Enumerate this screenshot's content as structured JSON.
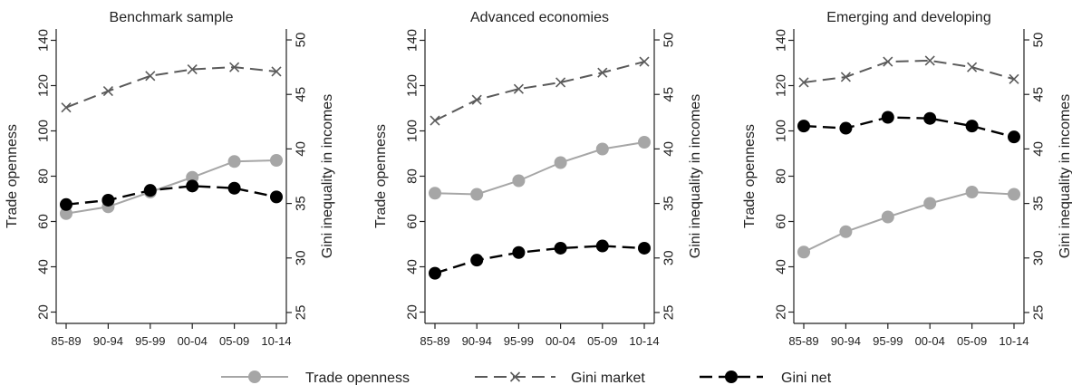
{
  "chart_data": [
    {
      "type": "line",
      "title": "Benchmark sample",
      "categories": [
        "85-89",
        "90-94",
        "95-99",
        "00-04",
        "05-09",
        "10-14"
      ],
      "y_left": {
        "label": "Trade openness",
        "lim": [
          15,
          145
        ],
        "ticks": [
          20,
          40,
          60,
          80,
          100,
          120,
          140
        ]
      },
      "y_right": {
        "label": "Gini inequality in incomes",
        "lim": [
          24,
          51
        ],
        "ticks": [
          25,
          30,
          35,
          40,
          45,
          50
        ]
      },
      "series": [
        {
          "name": "Trade openness",
          "axis": "left",
          "values": [
            63.5,
            66.5,
            73,
            79.5,
            86.5,
            87
          ]
        },
        {
          "name": "Gini market",
          "axis": "right",
          "values": [
            43.8,
            45.3,
            46.7,
            47.3,
            47.5,
            47.1
          ]
        },
        {
          "name": "Gini net",
          "axis": "right",
          "values": [
            34.9,
            35.3,
            36.2,
            36.6,
            36.4,
            35.6
          ]
        }
      ]
    },
    {
      "type": "line",
      "title": "Advanced economies",
      "categories": [
        "85-89",
        "90-94",
        "95-99",
        "00-04",
        "05-09",
        "10-14"
      ],
      "y_left": {
        "label": "Trade openness",
        "lim": [
          15,
          145
        ],
        "ticks": [
          20,
          40,
          60,
          80,
          100,
          120,
          140
        ]
      },
      "y_right": {
        "label": "Gini inequality in incomes",
        "lim": [
          24,
          51
        ],
        "ticks": [
          25,
          30,
          35,
          40,
          45,
          50
        ]
      },
      "series": [
        {
          "name": "Trade openness",
          "axis": "left",
          "values": [
            72.5,
            72,
            78,
            86,
            92,
            95
          ]
        },
        {
          "name": "Gini market",
          "axis": "right",
          "values": [
            42.6,
            44.5,
            45.5,
            46.1,
            47,
            48
          ]
        },
        {
          "name": "Gini net",
          "axis": "right",
          "values": [
            28.6,
            29.8,
            30.5,
            30.9,
            31.1,
            30.9
          ]
        }
      ]
    },
    {
      "type": "line",
      "title": "Emerging and developing",
      "categories": [
        "85-89",
        "90-94",
        "95-99",
        "00-04",
        "05-09",
        "10-14"
      ],
      "y_left": {
        "label": "Trade openness",
        "lim": [
          15,
          145
        ],
        "ticks": [
          20,
          40,
          60,
          80,
          100,
          120,
          140
        ]
      },
      "y_right": {
        "label": "Gini inequality in incomes",
        "lim": [
          24,
          51
        ],
        "ticks": [
          25,
          30,
          35,
          40,
          45,
          50
        ]
      },
      "series": [
        {
          "name": "Trade openness",
          "axis": "left",
          "values": [
            46.5,
            55.5,
            62,
            68,
            73,
            72
          ]
        },
        {
          "name": "Gini market",
          "axis": "right",
          "values": [
            46.1,
            46.6,
            48,
            48.1,
            47.5,
            46.4
          ]
        },
        {
          "name": "Gini net",
          "axis": "right",
          "values": [
            42.1,
            41.9,
            42.9,
            42.8,
            42.1,
            41.1
          ]
        }
      ]
    }
  ],
  "legend": {
    "placement": "bottom",
    "items": [
      {
        "label": "Trade openness",
        "color": "#a6a6a6",
        "marker": "circle",
        "dash": "solid"
      },
      {
        "label": "Gini market",
        "color": "#5a5a5a",
        "marker": "x",
        "dash": "long-dash"
      },
      {
        "label": "Gini net",
        "color": "#000000",
        "marker": "circle",
        "dash": "long-dash"
      }
    ]
  },
  "colors": {
    "trade": "#a6a6a6",
    "gini_market": "#5a5a5a",
    "gini_net": "#000000",
    "axis": "#222222"
  }
}
